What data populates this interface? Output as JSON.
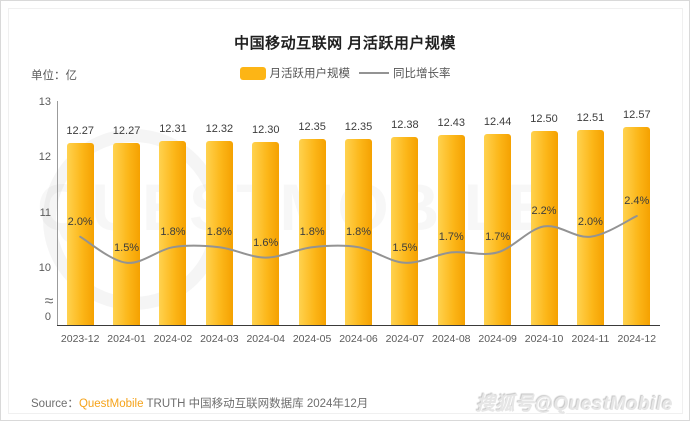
{
  "card": {
    "title": "中国移动互联网 月活跃用户规模",
    "unit_label": "单位：亿",
    "legend": [
      {
        "label": "月活跃用户规模",
        "type": "bar",
        "color": "#FDB515"
      },
      {
        "label": "同比增长率",
        "type": "line",
        "color": "#939393"
      }
    ],
    "icons": {
      "axis_break": "≈"
    },
    "background_watermark_text": "QUESTMOBILE",
    "footer": {
      "source_prefix": "Source：",
      "source_brand": "QuestMobile",
      "source_rest": " TRUTH 中国移动互联网数据库 2024年12月",
      "watermark": "搜狐号@QuestMobile"
    }
  },
  "chart_data": {
    "type": "bar",
    "title": "中国移动互联网 月活跃用户规模",
    "unit": "亿",
    "categories": [
      "2023-12",
      "2024-01",
      "2024-02",
      "2024-03",
      "2024-04",
      "2024-05",
      "2024-06",
      "2024-07",
      "2024-08",
      "2024-09",
      "2024-10",
      "2024-11",
      "2024-12"
    ],
    "series": [
      {
        "name": "月活跃用户规模",
        "type": "bar",
        "unit": "亿",
        "values": [
          12.27,
          12.27,
          12.31,
          12.32,
          12.3,
          12.35,
          12.35,
          12.38,
          12.43,
          12.44,
          12.5,
          12.51,
          12.57
        ]
      },
      {
        "name": "同比增长率",
        "type": "line",
        "unit": "%",
        "values": [
          2.0,
          1.5,
          1.8,
          1.8,
          1.6,
          1.8,
          1.8,
          1.5,
          1.7,
          1.7,
          2.2,
          2.0,
          2.4
        ]
      }
    ],
    "y_axis": {
      "ticks": [
        13,
        12,
        11,
        10,
        0
      ],
      "break": true,
      "label": "亿"
    },
    "grid": false,
    "legend_position": "top-center",
    "colors": {
      "bar_light": "#FFD24F",
      "bar_dark": "#F5A100",
      "line": "#939393"
    }
  }
}
